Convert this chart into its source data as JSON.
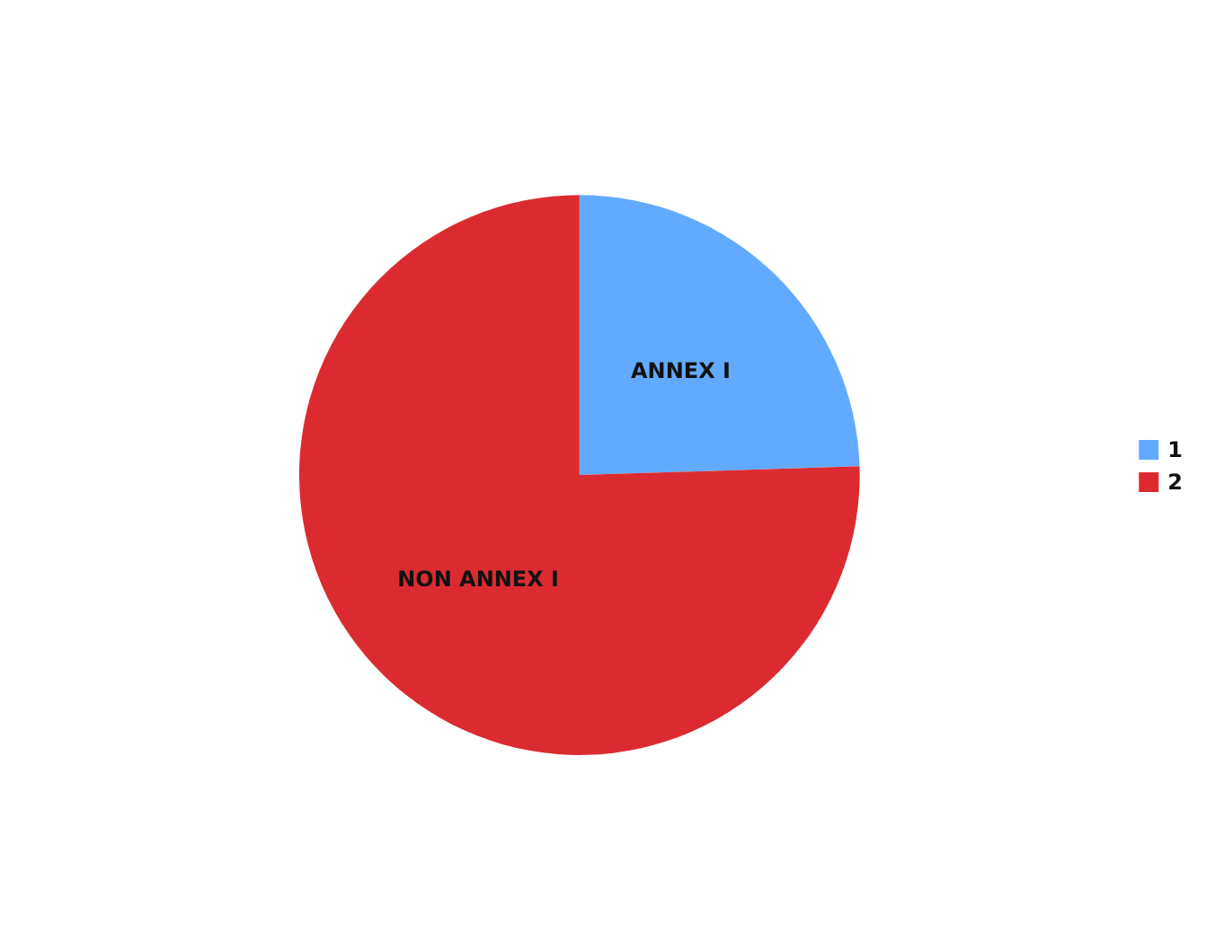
{
  "chart_data": {
    "type": "pie",
    "categories": [
      "1",
      "2"
    ],
    "values": [
      24.5,
      75.5
    ],
    "colors": [
      "#62aaff",
      "#dc2b30"
    ],
    "value_labels": [
      "ANNEX I",
      "NON ANNEX I"
    ],
    "legend": "right"
  }
}
